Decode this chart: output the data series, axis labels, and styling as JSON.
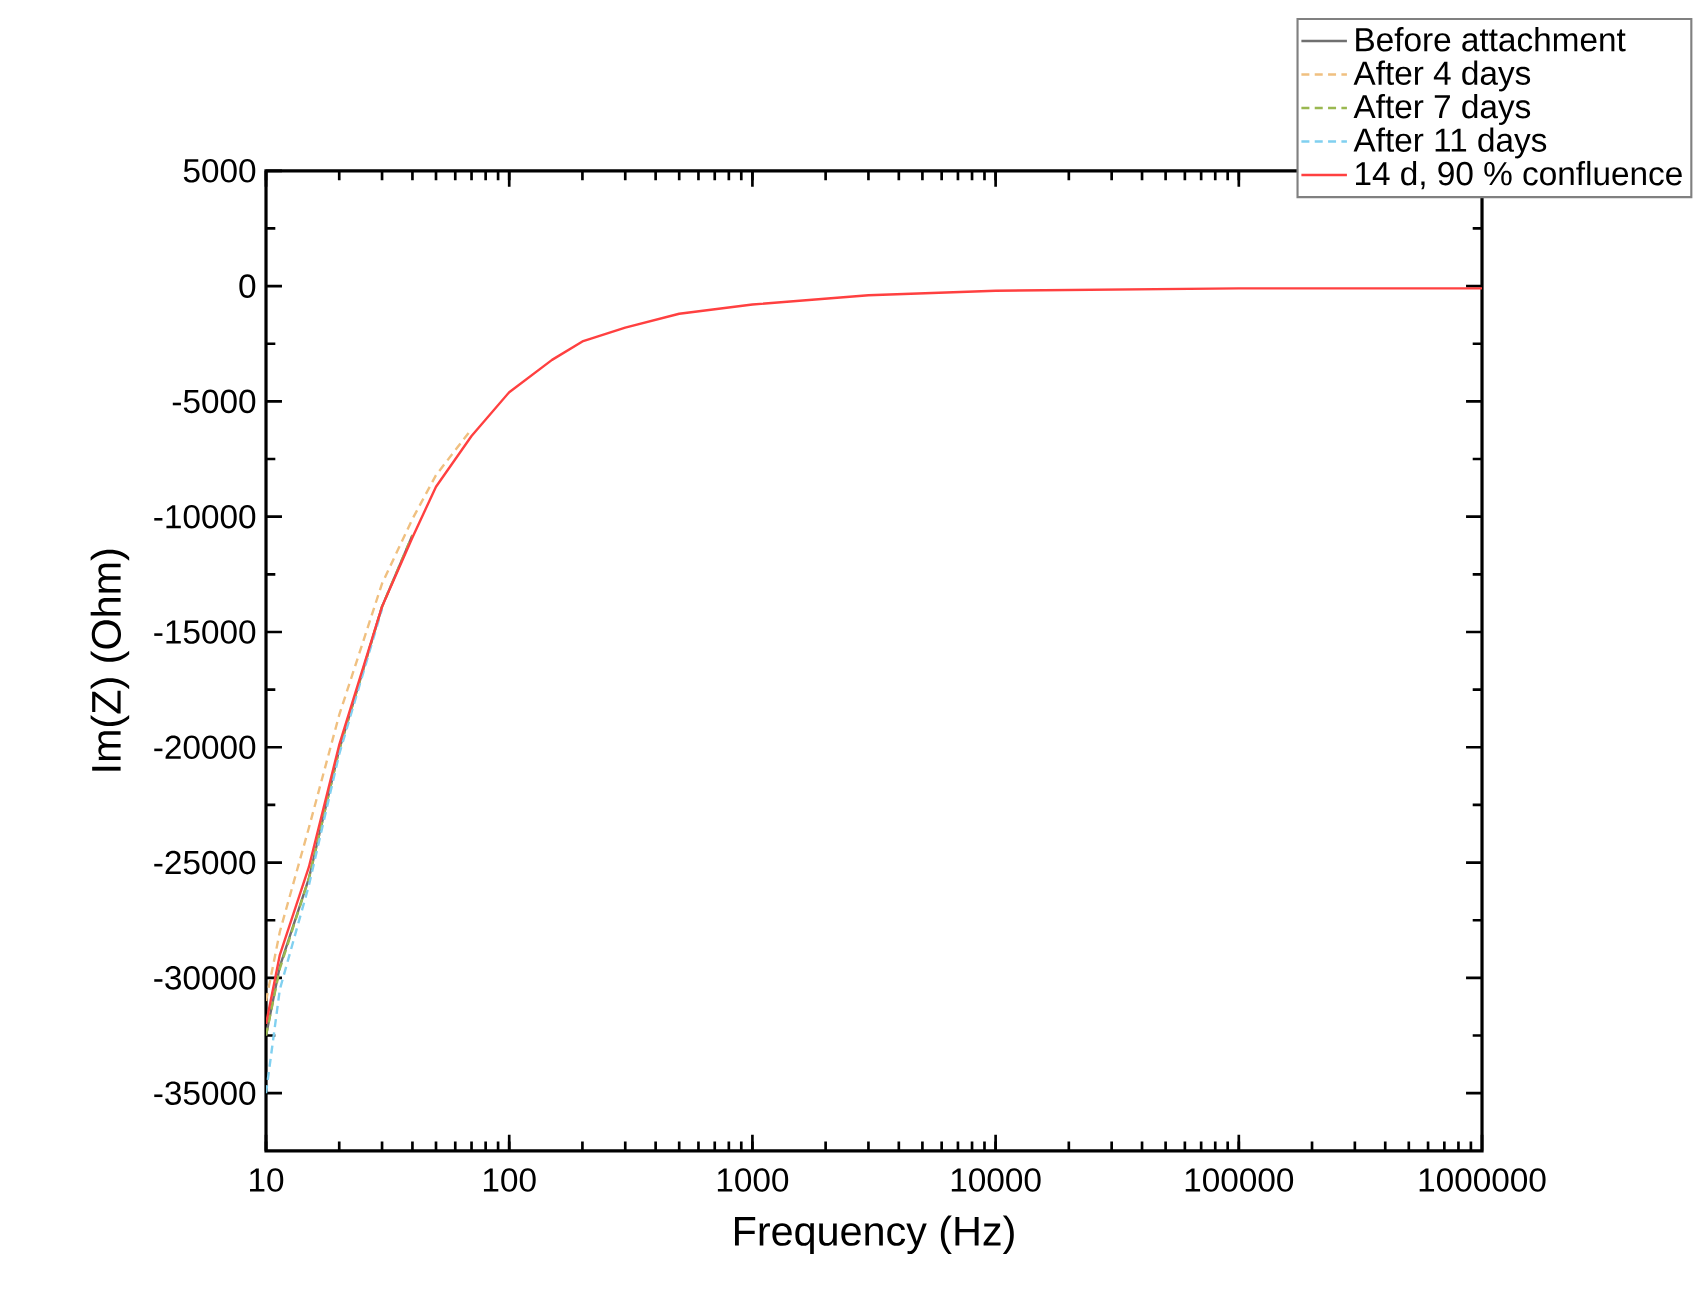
{
  "chart_data": {
    "type": "line",
    "xlabel": "Frequency (Hz)",
    "ylabel": "Im(Z) (Ohm)",
    "log": "x",
    "x": [
      10,
      11.4,
      15,
      20,
      30,
      40,
      50,
      70,
      100,
      150,
      200,
      300,
      500,
      1000,
      3000,
      10000,
      100000,
      1000000
    ],
    "xlim": [
      10,
      1000000
    ],
    "xticks": [
      10,
      100,
      1000,
      10000,
      100000,
      1000000
    ],
    "ylim": [
      -37500,
      5000
    ],
    "yticks": [
      5000,
      0,
      -5000,
      -10000,
      -15000,
      -20000,
      -25000,
      -30000,
      -35000
    ],
    "legend": "top right",
    "series": [
      {
        "name": "Before attachment",
        "color": "#707070",
        "line_style": "solid",
        "values": [
          -32500,
          -29500,
          -25700,
          -20100,
          -13900,
          -10800,
          null,
          null,
          null,
          null,
          null,
          null,
          null,
          null,
          null,
          null,
          null,
          null
        ]
      },
      {
        "name": "After 4 days",
        "color": "#f0c080",
        "line_style": "dashed",
        "values": [
          -31000,
          -28000,
          -23500,
          -18600,
          -12900,
          -10100,
          -8200,
          -6200,
          null,
          null,
          null,
          null,
          null,
          null,
          null,
          null,
          null,
          null
        ]
      },
      {
        "name": "After 7 days",
        "color": "#9ab850",
        "line_style": "dashed",
        "values": [
          -32500,
          -29600,
          -25700,
          -20100,
          -13900,
          -10800,
          null,
          null,
          null,
          null,
          null,
          null,
          null,
          null,
          null,
          null,
          null,
          null
        ]
      },
      {
        "name": "After 11 days",
        "color": "#80d0f0",
        "line_style": "dashed",
        "values": [
          -35000,
          -30500,
          -26000,
          -20300,
          -14000,
          null,
          null,
          null,
          null,
          null,
          null,
          null,
          null,
          null,
          null,
          null,
          null,
          null
        ]
      },
      {
        "name": "14 d, 90 % confluence",
        "color": "#ff4040",
        "line_style": "solid",
        "values": [
          -32000,
          -29000,
          -25200,
          -19900,
          -13900,
          -10900,
          -8700,
          -6500,
          -4600,
          -3200,
          -2400,
          -1800,
          -1200,
          -800,
          -400,
          -200,
          -100,
          -100
        ]
      }
    ]
  }
}
